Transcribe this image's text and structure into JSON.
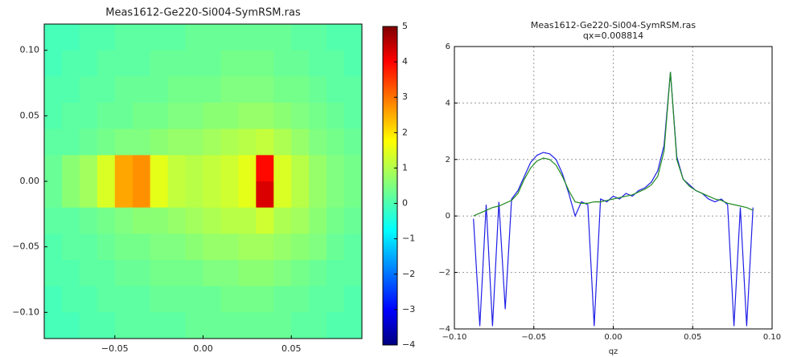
{
  "chart_data": [
    {
      "type": "heatmap",
      "title": "Meas1612-Ge220-Si004-SymRSM.ras",
      "colormap": "jet",
      "x": [
        -0.085,
        -0.075,
        -0.065,
        -0.055,
        -0.045,
        -0.035,
        -0.025,
        -0.015,
        -0.005,
        0.005,
        0.015,
        0.025,
        0.035,
        0.045,
        0.055,
        0.065,
        0.075,
        0.085
      ],
      "y": [
        0.11,
        0.09,
        0.07,
        0.05,
        0.03,
        0.01,
        -0.01,
        -0.03,
        -0.05,
        -0.07,
        -0.09,
        -0.11
      ],
      "z": [
        [
          0,
          0,
          0.1,
          0.1,
          0.2,
          0.2,
          0.2,
          0.2,
          0.3,
          0.3,
          0.3,
          0.3,
          0.3,
          0.3,
          0.2,
          0.2,
          0.1,
          0.1
        ],
        [
          0,
          0.1,
          0.1,
          0.2,
          0.2,
          0.2,
          0.3,
          0.3,
          0.3,
          0.3,
          0.4,
          0.4,
          0.4,
          0.3,
          0.3,
          0.2,
          0.2,
          0.1
        ],
        [
          0.1,
          0.1,
          0.2,
          0.2,
          0.3,
          0.3,
          0.3,
          0.4,
          0.4,
          0.4,
          0.5,
          0.5,
          0.5,
          0.4,
          0.4,
          0.3,
          0.2,
          0.2
        ],
        [
          0.1,
          0.2,
          0.2,
          0.3,
          0.3,
          0.4,
          0.4,
          0.5,
          0.5,
          0.6,
          0.6,
          0.7,
          0.7,
          0.6,
          0.5,
          0.4,
          0.3,
          0.2
        ],
        [
          0.2,
          0.2,
          0.3,
          0.4,
          0.5,
          0.5,
          0.6,
          0.7,
          0.7,
          0.8,
          0.9,
          1.0,
          1.1,
          0.9,
          0.7,
          0.5,
          0.4,
          0.3
        ],
        [
          0.3,
          0.6,
          0.8,
          1.3,
          2.4,
          2.6,
          1.4,
          1.1,
          1.0,
          1.1,
          1.2,
          1.4,
          3.8,
          1.3,
          1.0,
          0.7,
          0.5,
          0.4
        ],
        [
          0.3,
          0.6,
          0.8,
          1.3,
          2.4,
          2.6,
          1.4,
          1.1,
          1.0,
          1.1,
          1.2,
          1.4,
          4.2,
          1.3,
          1.0,
          0.7,
          0.5,
          0.4
        ],
        [
          0.2,
          0.2,
          0.3,
          0.4,
          0.5,
          0.6,
          0.6,
          0.7,
          0.8,
          0.9,
          1.0,
          1.0,
          1.2,
          0.9,
          0.8,
          0.6,
          0.4,
          0.3
        ],
        [
          0.1,
          0.2,
          0.2,
          0.3,
          0.4,
          0.4,
          0.5,
          0.5,
          0.6,
          0.7,
          0.7,
          0.8,
          0.8,
          0.7,
          0.6,
          0.5,
          0.3,
          0.2
        ],
        [
          0.1,
          0.1,
          0.2,
          0.2,
          0.3,
          0.3,
          0.4,
          0.4,
          0.4,
          0.5,
          0.5,
          0.6,
          0.6,
          0.5,
          0.4,
          0.3,
          0.2,
          0.2
        ],
        [
          0,
          0.1,
          0.1,
          0.2,
          0.2,
          0.2,
          0.3,
          0.3,
          0.3,
          0.3,
          0.4,
          0.4,
          0.4,
          0.3,
          0.3,
          0.2,
          0.2,
          0.1
        ],
        [
          0,
          0,
          0.1,
          0.1,
          0.2,
          0.2,
          0.2,
          0.2,
          0.3,
          0.3,
          0.3,
          0.3,
          0.3,
          0.3,
          0.2,
          0.2,
          0.1,
          0.1
        ]
      ],
      "xlim": [
        -0.09,
        0.09
      ],
      "ylim": [
        -0.12,
        0.12
      ],
      "xticks": [
        {
          "value": -0.05,
          "label": "−0.05"
        },
        {
          "value": 0,
          "label": "0.00"
        },
        0.05
      ],
      "yticks": [
        {
          "value": 0.1,
          "label": "0.10"
        },
        0.05,
        {
          "value": 0,
          "label": "0.00"
        },
        {
          "value": -0.05,
          "label": "−0.05"
        },
        {
          "value": -0.1,
          "label": "−0.10"
        }
      ],
      "zlim": [
        -4,
        5
      ],
      "zticks": [
        5,
        4,
        3,
        2,
        1,
        0,
        {
          "value": -1,
          "label": "−1"
        },
        {
          "value": -2,
          "label": "−2"
        },
        {
          "value": -3,
          "label": "−3"
        },
        {
          "value": -4,
          "label": "−4"
        }
      ]
    },
    {
      "type": "line",
      "title": "Meas1612-Ge220-Si004-SymRSM.ras",
      "subtitle": "qx=0.008814",
      "x_label": "qz",
      "grid": true,
      "x": [
        -0.088,
        -0.084,
        -0.08,
        -0.076,
        -0.072,
        -0.068,
        -0.064,
        -0.06,
        -0.056,
        -0.052,
        -0.048,
        -0.044,
        -0.04,
        -0.036,
        -0.032,
        -0.028,
        -0.024,
        -0.02,
        -0.016,
        -0.012,
        -0.008,
        -0.004,
        0,
        0.004,
        0.008,
        0.012,
        0.016,
        0.02,
        0.024,
        0.028,
        0.032,
        0.036,
        0.04,
        0.044,
        0.048,
        0.052,
        0.056,
        0.06,
        0.064,
        0.068,
        0.072,
        0.076,
        0.08,
        0.084,
        0.088
      ],
      "series": [
        {
          "color": "#1f1fe6",
          "values": [
            -0.1,
            -3.9,
            0.4,
            -3.9,
            0.5,
            -3.3,
            0.6,
            0.9,
            1.4,
            1.9,
            2.15,
            2.25,
            2.2,
            2.0,
            1.5,
            0.8,
            0.0,
            0.5,
            0.4,
            -3.9,
            0.6,
            0.5,
            0.7,
            0.6,
            0.8,
            0.7,
            0.9,
            1.0,
            1.2,
            1.6,
            2.5,
            5.1,
            2.1,
            1.3,
            1.1,
            0.9,
            0.8,
            0.6,
            0.5,
            0.6,
            0.4,
            -3.9,
            0.3,
            -3.9,
            0.3
          ]
        },
        {
          "color": "#1f8a1f",
          "values": [
            0.0,
            0.1,
            0.2,
            0.3,
            0.35,
            0.45,
            0.55,
            0.8,
            1.3,
            1.7,
            1.95,
            2.05,
            2.0,
            1.8,
            1.4,
            0.9,
            0.5,
            0.45,
            0.45,
            0.5,
            0.5,
            0.55,
            0.6,
            0.65,
            0.7,
            0.75,
            0.85,
            0.95,
            1.1,
            1.4,
            2.3,
            5.1,
            2.0,
            1.3,
            1.05,
            0.9,
            0.8,
            0.7,
            0.6,
            0.55,
            0.45,
            0.4,
            0.35,
            0.3,
            0.2
          ]
        }
      ],
      "xlim": [
        -0.1,
        0.1
      ],
      "ylim": [
        -4,
        6
      ],
      "xticks": [
        {
          "value": -0.1,
          "label": "−0.10"
        },
        {
          "value": -0.05,
          "label": "−0.05"
        },
        {
          "value": 0,
          "label": "0.00"
        },
        0.05,
        {
          "value": 0.1,
          "label": "0.10"
        }
      ],
      "yticks": [
        {
          "value": -4,
          "label": "−4"
        },
        {
          "value": -2,
          "label": "−2"
        },
        0,
        2,
        4,
        6
      ]
    }
  ]
}
